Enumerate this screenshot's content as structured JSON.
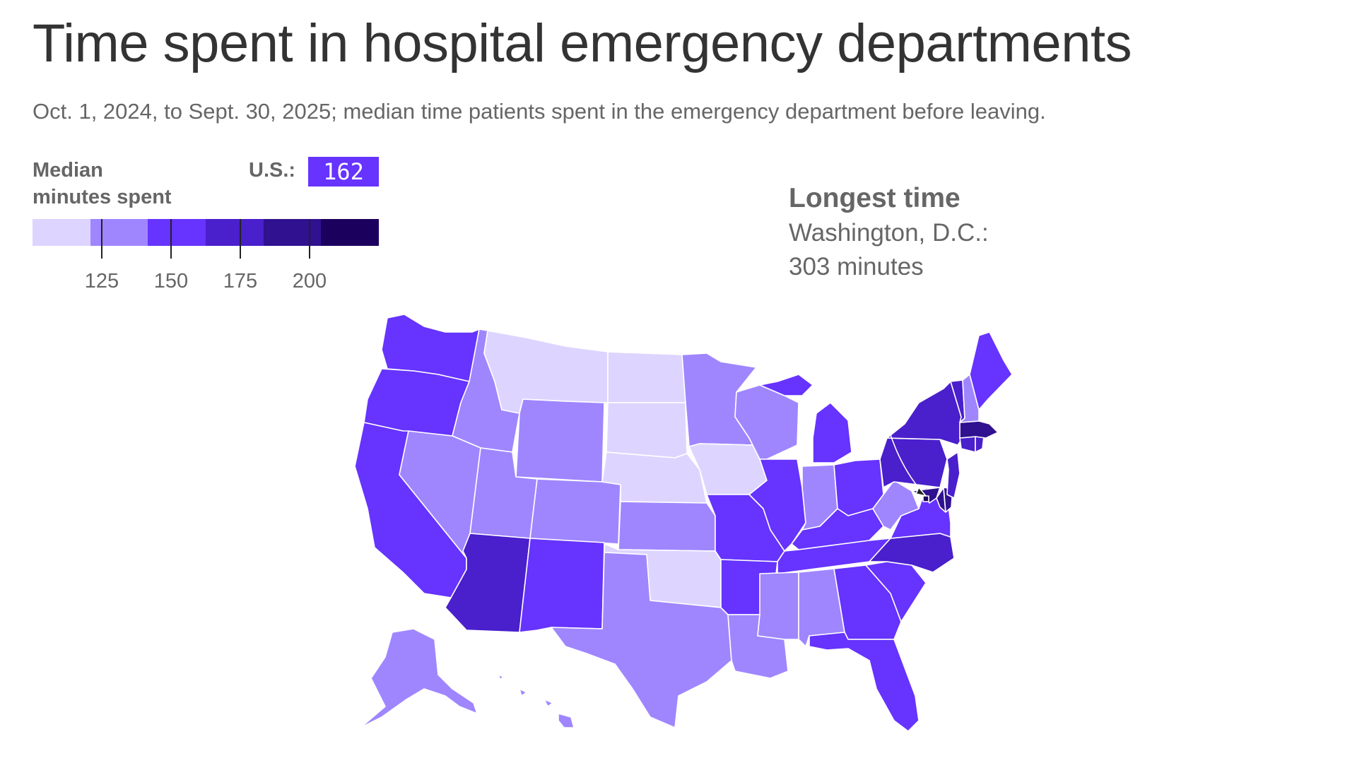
{
  "title": "Time spent in hospital emergency departments",
  "subtitle": "Oct. 1, 2024, to Sept. 30, 2025; median time patients spent in the emergency department before leaving.",
  "legend": {
    "title_line1": "Median",
    "title_line2": "minutes spent",
    "us_label": "U.S.:",
    "us_value": "162",
    "ticks": [
      "125",
      "150",
      "175",
      "200"
    ],
    "bins": [
      "#ddd5ff",
      "#9f86ff",
      "#6633ff",
      "#4a1fcc",
      "#30118f",
      "#1c005e"
    ]
  },
  "annotation": {
    "title": "Longest time",
    "line1": "Washington, D.C.:",
    "line2": "303 minutes"
  },
  "colors": {
    "lt125": "#ddd5ff",
    "b125_150": "#9f86ff",
    "b150_175": "#6633ff",
    "b175_200": "#4a1fcc",
    "b200_225": "#30118f",
    "gt225": "#1c005e"
  },
  "states": [
    {
      "id": "WA",
      "bin": "b150_175"
    },
    {
      "id": "OR",
      "bin": "b150_175"
    },
    {
      "id": "CA",
      "bin": "b150_175"
    },
    {
      "id": "ID",
      "bin": "b125_150"
    },
    {
      "id": "NV",
      "bin": "b125_150"
    },
    {
      "id": "MT",
      "bin": "lt125"
    },
    {
      "id": "WY",
      "bin": "b125_150"
    },
    {
      "id": "UT",
      "bin": "b125_150"
    },
    {
      "id": "AZ",
      "bin": "b175_200"
    },
    {
      "id": "CO",
      "bin": "b125_150"
    },
    {
      "id": "NM",
      "bin": "b150_175"
    },
    {
      "id": "ND",
      "bin": "lt125"
    },
    {
      "id": "SD",
      "bin": "lt125"
    },
    {
      "id": "NE",
      "bin": "lt125"
    },
    {
      "id": "KS",
      "bin": "b125_150"
    },
    {
      "id": "OK",
      "bin": "lt125"
    },
    {
      "id": "TX",
      "bin": "b125_150"
    },
    {
      "id": "MN",
      "bin": "b125_150"
    },
    {
      "id": "IA",
      "bin": "lt125"
    },
    {
      "id": "MO",
      "bin": "b150_175"
    },
    {
      "id": "AR",
      "bin": "b150_175"
    },
    {
      "id": "LA",
      "bin": "b125_150"
    },
    {
      "id": "WI",
      "bin": "b125_150"
    },
    {
      "id": "IL",
      "bin": "b150_175"
    },
    {
      "id": "MI",
      "bin": "b150_175"
    },
    {
      "id": "IN",
      "bin": "b125_150"
    },
    {
      "id": "OH",
      "bin": "b150_175"
    },
    {
      "id": "KY",
      "bin": "b150_175"
    },
    {
      "id": "TN",
      "bin": "b150_175"
    },
    {
      "id": "MS",
      "bin": "b125_150"
    },
    {
      "id": "AL",
      "bin": "b125_150"
    },
    {
      "id": "GA",
      "bin": "b150_175"
    },
    {
      "id": "FL",
      "bin": "b150_175"
    },
    {
      "id": "SC",
      "bin": "b150_175"
    },
    {
      "id": "NC",
      "bin": "b175_200"
    },
    {
      "id": "VA",
      "bin": "b150_175"
    },
    {
      "id": "WV",
      "bin": "b125_150"
    },
    {
      "id": "PA",
      "bin": "b175_200"
    },
    {
      "id": "NY",
      "bin": "b175_200"
    },
    {
      "id": "MD",
      "bin": "b200_225"
    },
    {
      "id": "DE",
      "bin": "b200_225"
    },
    {
      "id": "NJ",
      "bin": "b175_200"
    },
    {
      "id": "CT",
      "bin": "b175_200"
    },
    {
      "id": "RI",
      "bin": "b175_200"
    },
    {
      "id": "MA",
      "bin": "b200_225"
    },
    {
      "id": "VT",
      "bin": "b175_200"
    },
    {
      "id": "NH",
      "bin": "b125_150"
    },
    {
      "id": "ME",
      "bin": "b150_175"
    },
    {
      "id": "DC",
      "bin": "gt225"
    },
    {
      "id": "AK",
      "bin": "b125_150"
    },
    {
      "id": "HI",
      "bin": "b125_150"
    }
  ]
}
